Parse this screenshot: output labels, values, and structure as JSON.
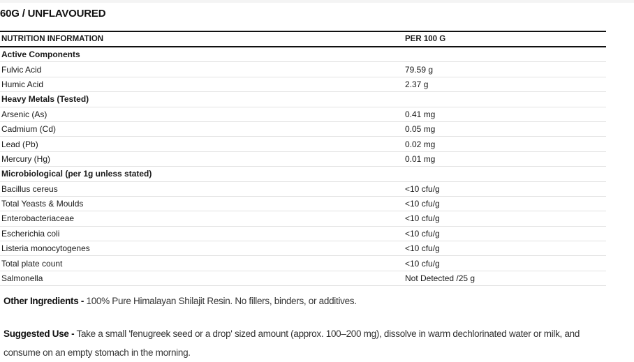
{
  "title": "60G / UNFLAVOURED",
  "table": {
    "headers": [
      "NUTRITION INFORMATION",
      "PER 100 G"
    ],
    "rows": [
      {
        "label": "Active Components",
        "value": "",
        "section": true
      },
      {
        "label": "Fulvic Acid",
        "value": "79.59 g"
      },
      {
        "label": "Humic Acid",
        "value": "2.37 g"
      },
      {
        "label": "Heavy Metals (Tested)",
        "value": "",
        "section": true
      },
      {
        "label": "Arsenic (As)",
        "value": "0.41 mg"
      },
      {
        "label": "Cadmium (Cd)",
        "value": "0.05 mg"
      },
      {
        "label": "Lead (Pb)",
        "value": "0.02 mg"
      },
      {
        "label": "Mercury (Hg)",
        "value": "0.01 mg"
      },
      {
        "label": "Microbiological (per 1g unless stated)",
        "value": "",
        "section": true
      },
      {
        "label": "Bacillus cereus",
        "value": "<10 cfu/g"
      },
      {
        "label": "Total Yeasts & Moulds",
        "value": "<10 cfu/g"
      },
      {
        "label": "Enterobacteriaceae",
        "value": "<10 cfu/g"
      },
      {
        "label": "Escherichia coli",
        "value": "<10 cfu/g"
      },
      {
        "label": "Listeria monocytogenes",
        "value": "<10 cfu/g"
      },
      {
        "label": "Total plate count",
        "value": "<10 cfu/g"
      },
      {
        "label": "Salmonella",
        "value": "Not Detected /25 g"
      }
    ]
  },
  "other_ingredients": {
    "label": "Other Ingredients -",
    "text": " 100% Pure Himalayan Shilajit Resin. No fillers, binders, or additives."
  },
  "suggested_use": {
    "label": "Suggested Use -",
    "text": " Take a small 'fenugreek seed or a drop' sized amount (approx. 100–200 mg), dissolve in warm dechlorinated water or milk, and consume on an empty stomach in the morning."
  }
}
